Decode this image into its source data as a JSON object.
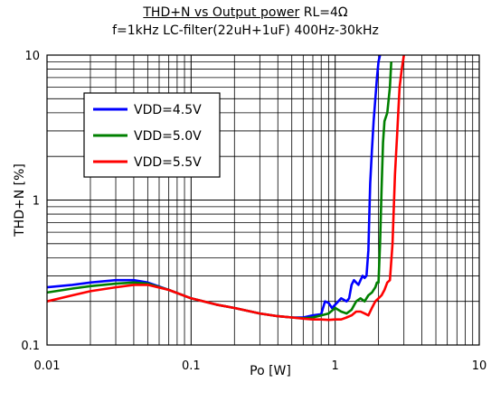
{
  "chart_data": {
    "type": "line",
    "title": "THD+N vs Output power RL=4Ω",
    "title_main": "THD+N vs Output power",
    "title_load": "RL=4Ω",
    "subtitle": "f=1kHz LC-filter(22uH+1uF) 400Hz-30kHz",
    "xlabel": "Po [W]",
    "ylabel": "THD+N [%]",
    "xscale": "log",
    "yscale": "log",
    "xlim": [
      0.01,
      10
    ],
    "ylim": [
      0.1,
      10
    ],
    "xtick_labels": [
      "0.01",
      "0.1",
      "1",
      "10"
    ],
    "ytick_labels": [
      "0.1",
      "1",
      "10"
    ],
    "grid": true,
    "legend_position": "upper-left",
    "series": [
      {
        "name": "VDD=4.5V",
        "color": "#0000ff",
        "x": [
          0.01,
          0.015,
          0.02,
          0.03,
          0.04,
          0.05,
          0.07,
          0.1,
          0.15,
          0.2,
          0.3,
          0.4,
          0.5,
          0.6,
          0.7,
          0.8,
          0.85,
          0.9,
          0.95,
          1.0,
          1.1,
          1.2,
          1.25,
          1.3,
          1.35,
          1.4,
          1.45,
          1.5,
          1.55,
          1.6,
          1.65,
          1.7,
          1.72,
          1.75,
          1.8,
          1.85,
          1.9,
          1.95,
          2.0,
          2.05
        ],
        "y": [
          0.25,
          0.26,
          0.27,
          0.28,
          0.28,
          0.27,
          0.24,
          0.21,
          0.19,
          0.18,
          0.165,
          0.158,
          0.155,
          0.155,
          0.16,
          0.163,
          0.2,
          0.195,
          0.18,
          0.19,
          0.21,
          0.2,
          0.21,
          0.26,
          0.28,
          0.27,
          0.26,
          0.28,
          0.3,
          0.29,
          0.3,
          0.45,
          0.7,
          1.3,
          2.2,
          3.5,
          5.0,
          7.0,
          9.0,
          10.0
        ]
      },
      {
        "name": "VDD=5.0V",
        "color": "#008000",
        "x": [
          0.01,
          0.015,
          0.02,
          0.03,
          0.04,
          0.05,
          0.07,
          0.1,
          0.15,
          0.2,
          0.3,
          0.4,
          0.5,
          0.6,
          0.7,
          0.8,
          0.9,
          1.0,
          1.05,
          1.1,
          1.2,
          1.3,
          1.4,
          1.5,
          1.6,
          1.7,
          1.8,
          1.9,
          1.95,
          2.0,
          2.05,
          2.1,
          2.15,
          2.2,
          2.3,
          2.4,
          2.45
        ],
        "y": [
          0.23,
          0.245,
          0.255,
          0.265,
          0.27,
          0.265,
          0.24,
          0.21,
          0.19,
          0.18,
          0.165,
          0.158,
          0.155,
          0.153,
          0.155,
          0.16,
          0.165,
          0.18,
          0.175,
          0.17,
          0.165,
          0.175,
          0.2,
          0.21,
          0.2,
          0.22,
          0.23,
          0.25,
          0.27,
          0.27,
          0.5,
          1.2,
          2.5,
          3.5,
          4.0,
          6.0,
          9.0
        ]
      },
      {
        "name": "VDD=5.5V",
        "color": "#ff0000",
        "x": [
          0.01,
          0.015,
          0.02,
          0.03,
          0.04,
          0.05,
          0.07,
          0.1,
          0.15,
          0.2,
          0.3,
          0.4,
          0.5,
          0.6,
          0.7,
          0.8,
          0.9,
          1.0,
          1.1,
          1.2,
          1.3,
          1.4,
          1.5,
          1.6,
          1.7,
          1.8,
          1.9,
          2.0,
          2.1,
          2.2,
          2.3,
          2.4,
          2.5,
          2.6,
          2.7,
          2.8,
          2.9,
          3.0
        ],
        "y": [
          0.2,
          0.22,
          0.235,
          0.25,
          0.26,
          0.26,
          0.24,
          0.21,
          0.19,
          0.18,
          0.165,
          0.158,
          0.155,
          0.152,
          0.15,
          0.15,
          0.149,
          0.15,
          0.15,
          0.155,
          0.16,
          0.17,
          0.17,
          0.165,
          0.16,
          0.18,
          0.2,
          0.21,
          0.22,
          0.24,
          0.27,
          0.28,
          0.5,
          1.5,
          3.0,
          6.0,
          8.0,
          10.0
        ]
      }
    ]
  }
}
